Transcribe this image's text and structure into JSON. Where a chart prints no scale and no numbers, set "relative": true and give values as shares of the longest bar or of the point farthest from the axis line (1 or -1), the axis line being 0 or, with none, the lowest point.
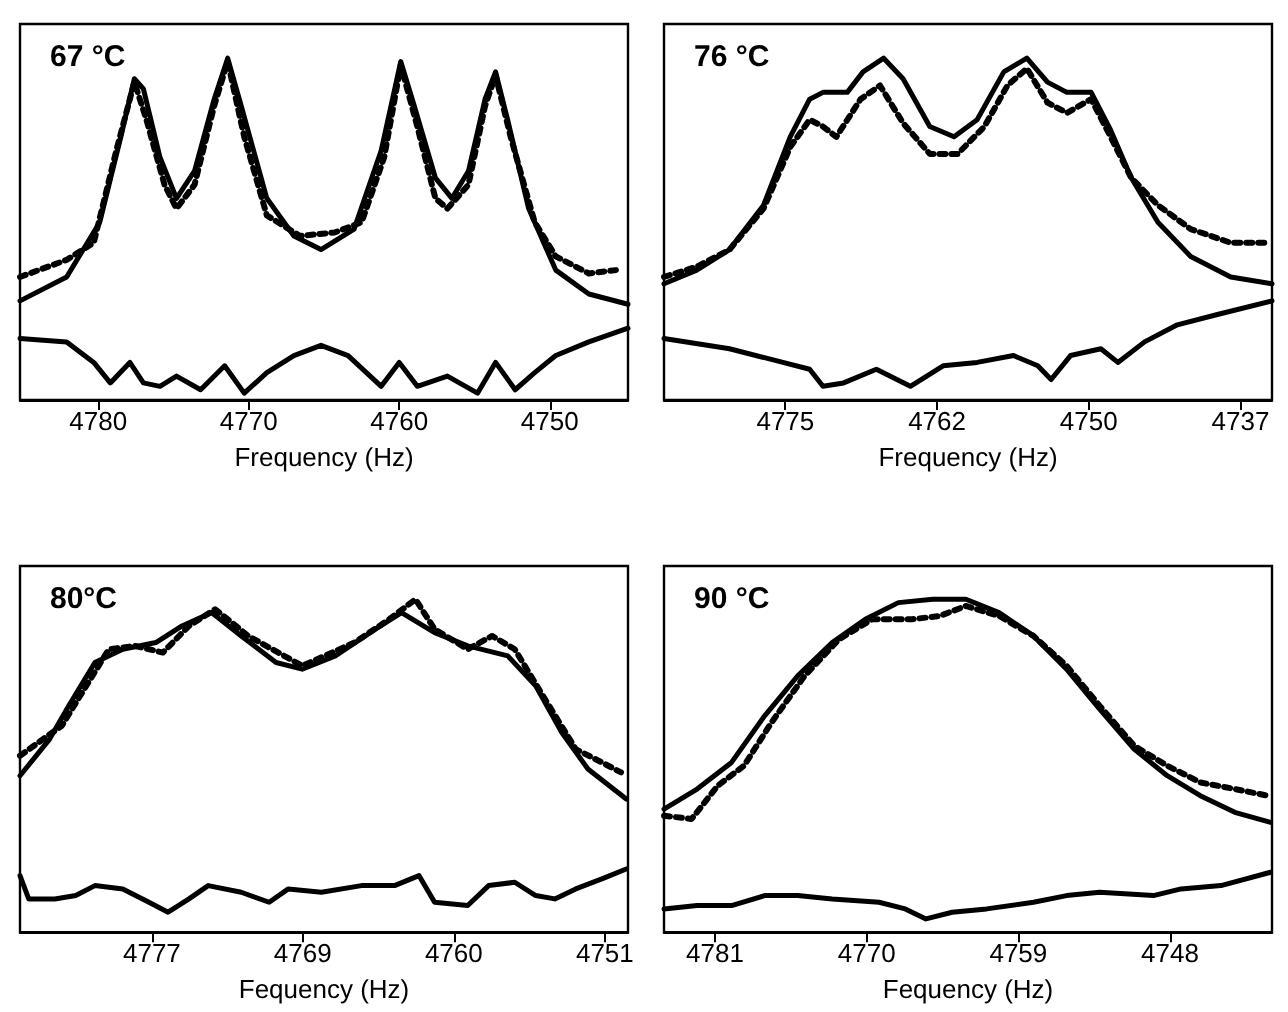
{
  "chart_data": [
    {
      "type": "line",
      "title": "67 °C",
      "xlabel": "Frequency (Hz)",
      "relative": true,
      "marker": "none",
      "xlim": [
        4785.2,
        4744.8
      ],
      "xticks": [
        4780,
        4770,
        4760,
        4750
      ],
      "series": [
        {
          "color": "#000000",
          "line_style": "solid",
          "x": [
            4785.2,
            4782.1,
            4779.9,
            4778.5,
            4777.6,
            4777.0,
            4775.9,
            4774.8,
            4773.6,
            4772.3,
            4771.4,
            4770.5,
            4768.8,
            4767.0,
            4765.2,
            4763.0,
            4761.2,
            4759.9,
            4759.0,
            4757.6,
            4756.5,
            4755.4,
            4754.3,
            4753.6,
            4752.8,
            4751.4,
            4749.6,
            4747.4,
            4744.8
          ],
          "values": [
            0.29,
            0.36,
            0.52,
            0.77,
            0.94,
            0.91,
            0.71,
            0.59,
            0.67,
            0.88,
            1.0,
            0.86,
            0.59,
            0.48,
            0.44,
            0.5,
            0.73,
            0.99,
            0.86,
            0.65,
            0.59,
            0.67,
            0.88,
            0.96,
            0.82,
            0.56,
            0.38,
            0.31,
            0.28
          ]
        },
        {
          "color": "#000000",
          "line_style": "dotted",
          "x": [
            4785.2,
            4782.1,
            4780.3,
            4778.8,
            4777.6,
            4776.8,
            4775.6,
            4774.8,
            4773.6,
            4772.3,
            4771.4,
            4770.3,
            4768.8,
            4766.6,
            4764.3,
            4762.5,
            4761.0,
            4759.9,
            4758.8,
            4757.6,
            4756.8,
            4755.4,
            4754.3,
            4753.6,
            4752.6,
            4751.0,
            4749.6,
            4747.4,
            4745.6
          ],
          "values": [
            0.36,
            0.41,
            0.46,
            0.73,
            0.93,
            0.82,
            0.63,
            0.56,
            0.63,
            0.86,
            0.99,
            0.77,
            0.54,
            0.48,
            0.49,
            0.52,
            0.71,
            0.98,
            0.8,
            0.59,
            0.56,
            0.63,
            0.86,
            0.95,
            0.77,
            0.52,
            0.42,
            0.37,
            0.38
          ]
        },
        {
          "color": "#000000",
          "line_style": "solid",
          "x": [
            4785.2,
            4782.1,
            4780.3,
            4779.2,
            4777.9,
            4777.0,
            4775.9,
            4774.8,
            4773.2,
            4771.6,
            4770.3,
            4768.8,
            4767.0,
            4765.2,
            4763.4,
            4761.2,
            4760.0,
            4758.8,
            4756.8,
            4754.8,
            4753.6,
            4752.3,
            4751.0,
            4749.6,
            4747.4,
            4744.8
          ],
          "values": [
            0.18,
            0.17,
            0.11,
            0.05,
            0.11,
            0.05,
            0.04,
            0.07,
            0.03,
            0.1,
            0.02,
            0.08,
            0.13,
            0.16,
            0.13,
            0.04,
            0.11,
            0.04,
            0.07,
            0.02,
            0.11,
            0.03,
            0.08,
            0.13,
            0.17,
            0.21
          ]
        }
      ]
    },
    {
      "type": "line",
      "title": "76 °C",
      "xlabel": "Frequency (Hz)",
      "relative": true,
      "marker": "none",
      "xlim": [
        4785.0,
        4734.9
      ],
      "xticks": [
        4775,
        {
          "value": 4762.5,
          "label": "4762"
        },
        4750,
        {
          "value": 4737.5,
          "label": "4737"
        }
      ],
      "series": [
        {
          "color": "#000000",
          "line_style": "solid",
          "x": [
            4785.0,
            4782.3,
            4779.6,
            4776.8,
            4774.6,
            4773.0,
            4771.9,
            4769.9,
            4768.6,
            4766.9,
            4765.3,
            4763.1,
            4761.1,
            4759.2,
            4757.0,
            4755.1,
            4753.4,
            4751.8,
            4749.8,
            4748.2,
            4746.5,
            4744.3,
            4741.6,
            4738.3,
            4734.9
          ],
          "values": [
            0.34,
            0.38,
            0.44,
            0.57,
            0.77,
            0.88,
            0.9,
            0.9,
            0.96,
            1.0,
            0.94,
            0.8,
            0.77,
            0.82,
            0.96,
            1.0,
            0.93,
            0.9,
            0.9,
            0.79,
            0.65,
            0.52,
            0.42,
            0.36,
            0.34
          ]
        },
        {
          "color": "#000000",
          "line_style": "dotted",
          "x": [
            4785.0,
            4782.3,
            4779.6,
            4776.8,
            4774.6,
            4773.0,
            4771.9,
            4770.8,
            4768.8,
            4767.2,
            4765.3,
            4763.1,
            4760.8,
            4758.6,
            4756.7,
            4755.1,
            4753.4,
            4751.8,
            4749.8,
            4748.2,
            4746.5,
            4744.3,
            4741.6,
            4738.3,
            4735.5
          ],
          "values": [
            0.36,
            0.39,
            0.44,
            0.56,
            0.74,
            0.82,
            0.8,
            0.77,
            0.88,
            0.92,
            0.81,
            0.72,
            0.72,
            0.8,
            0.92,
            0.97,
            0.87,
            0.84,
            0.88,
            0.77,
            0.65,
            0.57,
            0.5,
            0.46,
            0.46
          ]
        },
        {
          "color": "#000000",
          "line_style": "solid",
          "x": [
            4785.0,
            4779.6,
            4775.2,
            4773.0,
            4771.9,
            4770.2,
            4767.5,
            4764.7,
            4762.0,
            4759.2,
            4756.2,
            4754.2,
            4753.1,
            4751.5,
            4749.0,
            4747.6,
            4745.4,
            4742.7,
            4739.4,
            4734.9
          ],
          "values": [
            0.18,
            0.15,
            0.11,
            0.09,
            0.04,
            0.05,
            0.09,
            0.04,
            0.1,
            0.11,
            0.13,
            0.1,
            0.06,
            0.13,
            0.15,
            0.11,
            0.17,
            0.22,
            0.25,
            0.29
          ]
        }
      ]
    },
    {
      "type": "line",
      "title": "80°C",
      "xlabel": "Fequency (Hz)",
      "relative": true,
      "marker": "none",
      "xlim": [
        4784.9,
        4750.0
      ],
      "xticks": [
        {
          "value": 4777.33,
          "label": "4777"
        },
        {
          "value": 4768.67,
          "label": "4769"
        },
        4760,
        {
          "value": 4751.33,
          "label": "4751"
        }
      ],
      "series": [
        {
          "color": "#000000",
          "line_style": "solid",
          "x": [
            4784.9,
            4783.2,
            4782.1,
            4780.6,
            4779.0,
            4777.1,
            4775.6,
            4773.9,
            4772.2,
            4770.2,
            4768.7,
            4766.8,
            4764.5,
            4763.0,
            4761.1,
            4759.2,
            4756.9,
            4755.3,
            4753.8,
            4752.3,
            4750.1
          ],
          "values": [
            0.47,
            0.58,
            0.68,
            0.81,
            0.85,
            0.87,
            0.92,
            0.96,
            0.89,
            0.81,
            0.79,
            0.83,
            0.91,
            0.96,
            0.9,
            0.86,
            0.83,
            0.74,
            0.6,
            0.49,
            0.4
          ]
        },
        {
          "color": "#000000",
          "line_style": "dotted",
          "x": [
            4784.9,
            4782.5,
            4781.1,
            4779.8,
            4778.3,
            4776.7,
            4775.2,
            4773.7,
            4771.8,
            4768.7,
            4765.7,
            4763.7,
            4762.2,
            4761.1,
            4759.2,
            4757.8,
            4756.5,
            4755.0,
            4753.0,
            4751.5,
            4750.4
          ],
          "values": [
            0.53,
            0.62,
            0.74,
            0.85,
            0.86,
            0.84,
            0.92,
            0.97,
            0.89,
            0.8,
            0.87,
            0.94,
            1.0,
            0.91,
            0.85,
            0.89,
            0.85,
            0.72,
            0.55,
            0.51,
            0.48
          ]
        },
        {
          "color": "#000000",
          "line_style": "solid",
          "x": [
            4784.9,
            4784.4,
            4782.9,
            4781.7,
            4780.6,
            4779.0,
            4777.5,
            4776.4,
            4775.2,
            4774.1,
            4772.2,
            4770.6,
            4769.5,
            4767.6,
            4765.3,
            4763.4,
            4762.0,
            4761.1,
            4759.2,
            4758.0,
            4756.5,
            4755.3,
            4754.2,
            4753.0,
            4751.5,
            4750.1
          ],
          "values": [
            0.17,
            0.1,
            0.1,
            0.11,
            0.14,
            0.13,
            0.09,
            0.06,
            0.1,
            0.14,
            0.12,
            0.09,
            0.13,
            0.12,
            0.14,
            0.14,
            0.17,
            0.09,
            0.08,
            0.14,
            0.15,
            0.11,
            0.1,
            0.13,
            0.16,
            0.19
          ]
        }
      ]
    },
    {
      "type": "line",
      "title": "90 °C",
      "xlabel": "Fequency (Hz)",
      "relative": true,
      "marker": "none",
      "xlim": [
        4784.7,
        4740.6
      ],
      "xticks": [
        4781,
        4770,
        4759,
        4748
      ],
      "series": [
        {
          "color": "#000000",
          "line_style": "solid",
          "x": [
            4784.7,
            4782.3,
            4779.8,
            4777.4,
            4775.0,
            4772.5,
            4770.1,
            4767.7,
            4765.2,
            4762.8,
            4760.4,
            4757.9,
            4755.5,
            4753.1,
            4750.6,
            4748.2,
            4745.8,
            4743.3,
            4740.7
          ],
          "values": [
            0.37,
            0.43,
            0.51,
            0.65,
            0.77,
            0.87,
            0.94,
            0.99,
            1.0,
            1.0,
            0.96,
            0.89,
            0.79,
            0.67,
            0.55,
            0.47,
            0.41,
            0.36,
            0.33
          ]
        },
        {
          "color": "#000000",
          "line_style": "dotted",
          "x": [
            4784.7,
            4782.7,
            4780.8,
            4778.9,
            4776.9,
            4774.5,
            4772.0,
            4769.6,
            4766.7,
            4764.7,
            4762.8,
            4760.4,
            4757.9,
            4755.5,
            4753.1,
            4750.6,
            4748.2,
            4745.8,
            4743.3,
            4740.9
          ],
          "values": [
            0.35,
            0.34,
            0.44,
            0.5,
            0.63,
            0.77,
            0.88,
            0.94,
            0.94,
            0.95,
            0.98,
            0.95,
            0.89,
            0.8,
            0.68,
            0.56,
            0.5,
            0.45,
            0.43,
            0.41
          ]
        },
        {
          "color": "#000000",
          "line_style": "solid",
          "x": [
            4784.7,
            4782.3,
            4779.8,
            4777.4,
            4775.0,
            4772.5,
            4769.1,
            4767.2,
            4765.7,
            4763.8,
            4761.3,
            4757.9,
            4755.5,
            4753.1,
            4749.2,
            4747.2,
            4744.3,
            4740.7
          ],
          "values": [
            0.07,
            0.08,
            0.08,
            0.11,
            0.11,
            0.1,
            0.09,
            0.07,
            0.04,
            0.06,
            0.07,
            0.09,
            0.11,
            0.12,
            0.11,
            0.13,
            0.14,
            0.18
          ]
        }
      ]
    }
  ]
}
